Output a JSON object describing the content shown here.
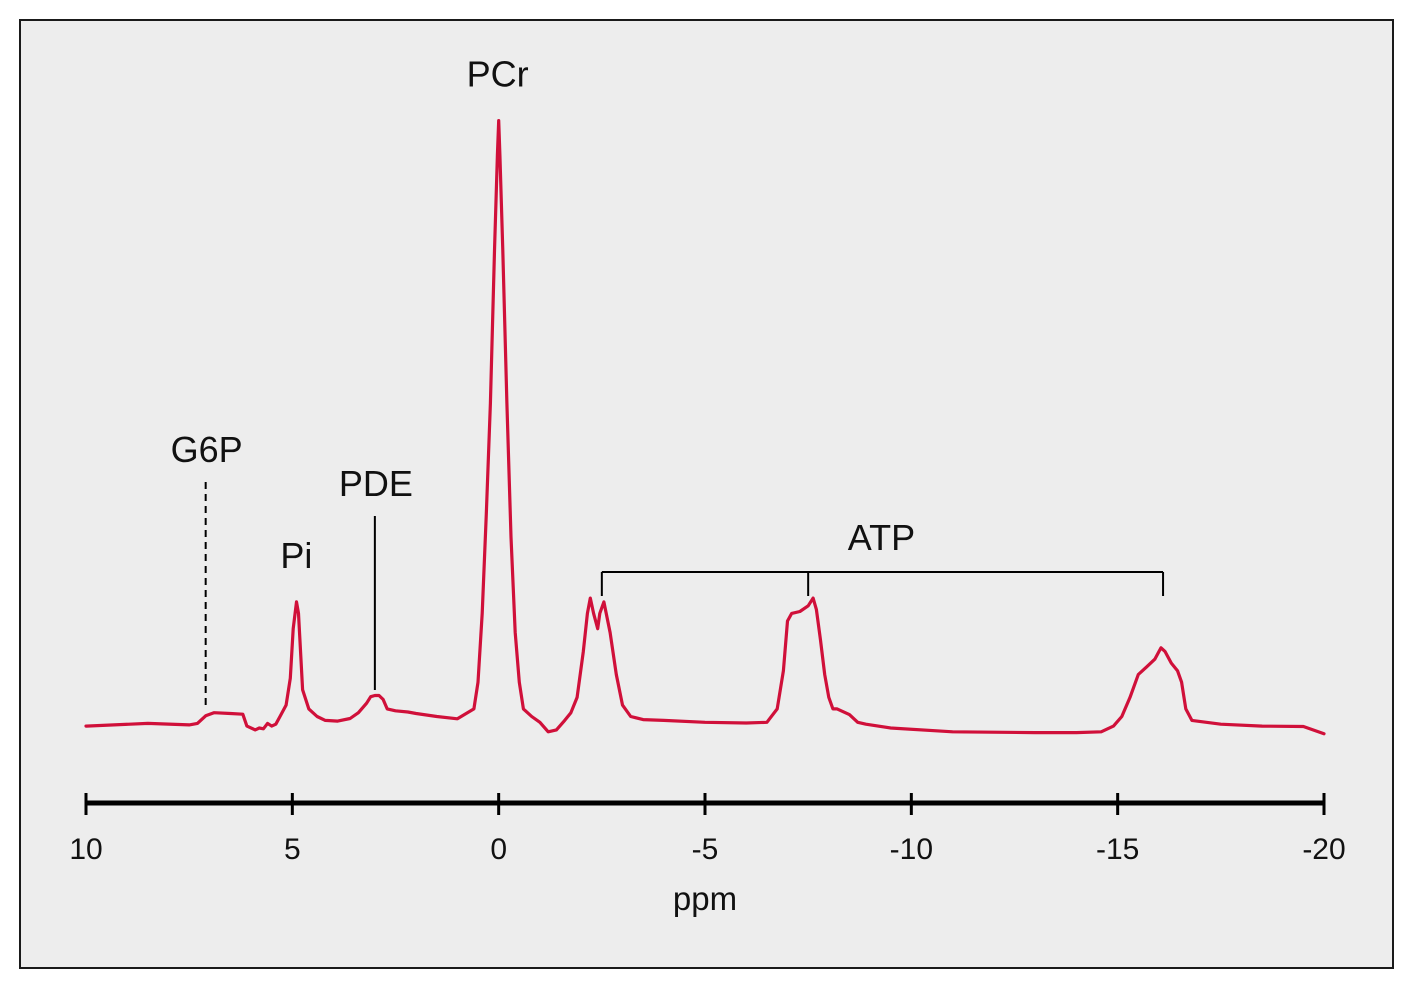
{
  "chart_data": {
    "type": "line",
    "xlabel": "ppm",
    "xlim": [
      10,
      -20
    ],
    "xticks": [
      10,
      5,
      0,
      -5,
      -10,
      -15,
      -20
    ],
    "tick_labels": [
      "10",
      "5",
      "0",
      "-5",
      "-10",
      "-15",
      "-20"
    ],
    "series_color": "#d0103a",
    "series": [
      {
        "x": [
          10,
          8.5,
          7.5,
          7.3,
          7.1,
          6.9,
          6.5,
          6.2,
          6.1,
          5.9,
          5.8,
          5.7,
          5.6,
          5.5,
          5.4,
          5.3,
          5.15,
          5.05,
          4.98,
          4.9,
          4.85,
          4.75,
          4.6,
          4.4,
          4.2,
          3.9,
          3.6,
          3.4,
          3.2,
          3.1,
          3.0,
          2.9,
          2.8,
          2.7,
          2.5,
          2.2,
          2.0,
          1.5,
          1.0,
          0.6,
          0.5,
          0.4,
          0.3,
          0.2,
          0.1,
          0.03,
          0,
          -0.03,
          -0.1,
          -0.2,
          -0.3,
          -0.4,
          -0.5,
          -0.6,
          -0.8,
          -1.0,
          -1.2,
          -1.4,
          -1.6,
          -1.75,
          -1.9,
          -2.05,
          -2.15,
          -2.22,
          -2.3,
          -2.4,
          -2.45,
          -2.55,
          -2.7,
          -2.85,
          -3.0,
          -3.2,
          -3.5,
          -4.0,
          -5.0,
          -6.0,
          -6.5,
          -6.75,
          -6.9,
          -7.0,
          -7.1,
          -7.3,
          -7.5,
          -7.62,
          -7.7,
          -7.8,
          -7.9,
          -8.0,
          -8.1,
          -8.2,
          -8.5,
          -8.7,
          -8.9,
          -9.5,
          -11.0,
          -13.0,
          -14.0,
          -14.6,
          -14.9,
          -15.1,
          -15.3,
          -15.5,
          -15.7,
          -15.9,
          -16.0,
          -16.05,
          -16.15,
          -16.3,
          -16.45,
          -16.55,
          -16.65,
          -16.8,
          -17.5,
          -18.5,
          -19.5,
          -20
        ],
        "y": [
          0.005,
          0.012,
          0.008,
          0.012,
          0.032,
          0.04,
          0.038,
          0.036,
          0.005,
          -0.005,
          0.0,
          -0.002,
          0.012,
          0.005,
          0.01,
          0.03,
          0.06,
          0.13,
          0.26,
          0.33,
          0.3,
          0.1,
          0.05,
          0.03,
          0.02,
          0.018,
          0.025,
          0.04,
          0.065,
          0.082,
          0.085,
          0.085,
          0.075,
          0.05,
          0.045,
          0.042,
          0.038,
          0.03,
          0.024,
          0.05,
          0.12,
          0.3,
          0.56,
          0.85,
          1.25,
          1.5,
          1.59,
          1.5,
          1.25,
          0.85,
          0.5,
          0.25,
          0.12,
          0.05,
          0.03,
          0.015,
          -0.01,
          -0.005,
          0.02,
          0.04,
          0.08,
          0.2,
          0.3,
          0.34,
          0.3,
          0.26,
          0.3,
          0.33,
          0.25,
          0.14,
          0.06,
          0.03,
          0.022,
          0.02,
          0.015,
          0.013,
          0.015,
          0.05,
          0.15,
          0.28,
          0.3,
          0.305,
          0.32,
          0.34,
          0.31,
          0.23,
          0.14,
          0.08,
          0.05,
          0.05,
          0.035,
          0.015,
          0.01,
          0.0,
          -0.01,
          -0.012,
          -0.012,
          -0.01,
          0.005,
          0.03,
          0.08,
          0.14,
          0.16,
          0.18,
          0.2,
          0.21,
          0.2,
          0.17,
          0.15,
          0.12,
          0.05,
          0.02,
          0.01,
          0.005,
          0.004,
          -0.015
        ]
      }
    ],
    "annotations": [
      {
        "label": "PCr",
        "x": 0.05,
        "y": 1.59
      },
      {
        "label": "G6P",
        "x": 7.1,
        "y": 0.04,
        "connector": "dashed"
      },
      {
        "label": "Pi",
        "x": 4.95,
        "y": 0.33
      },
      {
        "label": "PDE",
        "x": 3.0,
        "y": 0.085,
        "connector": "solid"
      },
      {
        "label": "ATP",
        "x_bracket": [
          -2.5,
          -7.5,
          -16.1
        ]
      }
    ]
  }
}
